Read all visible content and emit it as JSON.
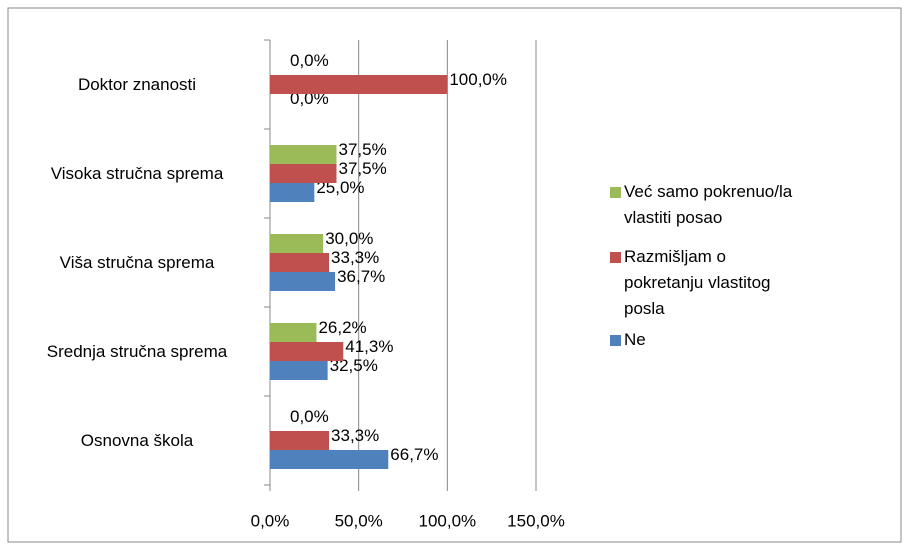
{
  "chart_data": {
    "type": "hbar",
    "categories": [
      "Doktor znanosti",
      "Visoka stručna sprema",
      "Viša stručna sprema",
      "Srednja stručna sprema",
      "Osnovna škola"
    ],
    "series": [
      {
        "name": "Ne",
        "color": "#4f81bd",
        "values": [
          0,
          25,
          36.7,
          32.5,
          66.7
        ],
        "value_labels": [
          "0,0%",
          "25,0%",
          "36,7%",
          "32,5%",
          "66,7%"
        ]
      },
      {
        "name": "Razmišljam o pokretanju vlastitog posla",
        "color": "#c0504d",
        "values": [
          100,
          37.5,
          33.3,
          41.3,
          33.3
        ],
        "value_labels": [
          "100,0%",
          "37,5%",
          "33,3%",
          "41,3%",
          "33,3%"
        ]
      },
      {
        "name": "Već samo pokrenuo/la vlastiti posao",
        "color": "#9bbb59",
        "values": [
          0,
          37.5,
          30,
          26.2,
          0
        ],
        "value_labels": [
          "0,0%",
          "37,5%",
          "30,0%",
          "26,2%",
          "0,0%"
        ]
      }
    ],
    "xlim": [
      0,
      150
    ],
    "xticks": [
      {
        "value": 0,
        "label": "0,0%"
      },
      {
        "value": 50,
        "label": "50,0%"
      },
      {
        "value": 100,
        "label": "100,0%"
      },
      {
        "value": 150,
        "label": "150,0%"
      }
    ],
    "grid": true,
    "legend": "right"
  }
}
